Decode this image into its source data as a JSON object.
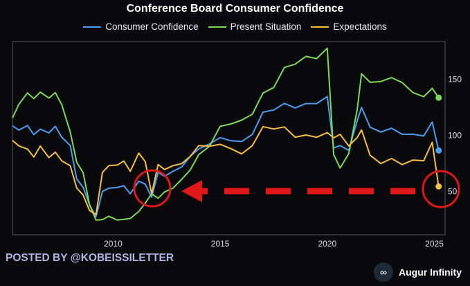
{
  "chart_data": {
    "type": "line",
    "title": "Conference Board Consumer Confidence",
    "xlabel": "",
    "ylabel": "",
    "xlim": [
      2005.3,
      2025.5
    ],
    "ylim": [
      11,
      183
    ],
    "xticks": [
      2010,
      2015,
      2020,
      2025
    ],
    "yticks": [
      50,
      100,
      150
    ],
    "legend_position": "top",
    "series": [
      {
        "name": "Consumer Confidence",
        "color": "#4a9ff5",
        "x": [
          2005.3,
          2005.6,
          2006.0,
          2006.3,
          2006.6,
          2007.0,
          2007.3,
          2007.6,
          2008.0,
          2008.3,
          2008.6,
          2008.9,
          2009.2,
          2009.5,
          2009.8,
          2010.2,
          2010.5,
          2010.8,
          2011.2,
          2011.5,
          2011.8,
          2012.1,
          2012.4,
          2012.8,
          2013.2,
          2013.6,
          2014.0,
          2014.5,
          2015.0,
          2015.5,
          2016.0,
          2016.5,
          2017.0,
          2017.5,
          2018.0,
          2018.5,
          2019.0,
          2019.5,
          2020.0,
          2020.3,
          2020.6,
          2021.0,
          2021.4,
          2021.6,
          2022.0,
          2022.5,
          2023.0,
          2023.5,
          2024.0,
          2024.5,
          2024.9,
          2025.2
        ],
        "y": [
          108,
          102,
          106,
          100,
          107,
          104,
          108,
          96,
          88,
          60,
          55,
          40,
          28,
          48,
          50,
          52,
          56,
          50,
          60,
          55,
          42,
          65,
          64,
          70,
          73,
          80,
          85,
          90,
          98,
          97,
          96,
          100,
          118,
          120,
          128,
          126,
          130,
          128,
          132,
          86,
          90,
          88,
          115,
          125,
          105,
          100,
          105,
          102,
          103,
          100,
          110,
          86
        ]
      },
      {
        "name": "Present Situation",
        "color": "#7ed957",
        "x": [
          2005.3,
          2005.6,
          2006.0,
          2006.3,
          2006.6,
          2007.0,
          2007.3,
          2007.6,
          2008.0,
          2008.3,
          2008.6,
          2008.9,
          2009.2,
          2009.5,
          2009.8,
          2010.2,
          2010.5,
          2010.8,
          2011.2,
          2011.5,
          2011.8,
          2012.1,
          2012.4,
          2012.8,
          2013.2,
          2013.6,
          2014.0,
          2014.5,
          2015.0,
          2015.5,
          2016.0,
          2016.5,
          2017.0,
          2017.5,
          2018.0,
          2018.5,
          2019.0,
          2019.5,
          2020.0,
          2020.3,
          2020.6,
          2021.0,
          2021.4,
          2021.6,
          2022.0,
          2022.5,
          2023.0,
          2023.5,
          2024.0,
          2024.5,
          2024.9,
          2025.2
        ],
        "y": [
          115,
          125,
          135,
          132,
          140,
          135,
          138,
          125,
          100,
          75,
          68,
          40,
          25,
          23,
          25,
          23,
          26,
          28,
          33,
          38,
          45,
          42,
          50,
          55,
          62,
          68,
          80,
          88,
          108,
          112,
          115,
          118,
          135,
          140,
          160,
          165,
          172,
          168,
          175,
          80,
          70,
          85,
          125,
          155,
          145,
          145,
          150,
          148,
          140,
          135,
          140,
          133
        ]
      },
      {
        "name": "Expectations",
        "color": "#f5bf42",
        "x": [
          2005.3,
          2005.6,
          2006.0,
          2006.3,
          2006.6,
          2007.0,
          2007.3,
          2007.6,
          2008.0,
          2008.3,
          2008.6,
          2008.9,
          2009.2,
          2009.5,
          2009.8,
          2010.2,
          2010.5,
          2010.8,
          2011.2,
          2011.5,
          2011.8,
          2012.1,
          2012.4,
          2012.8,
          2013.2,
          2013.6,
          2014.0,
          2014.5,
          2015.0,
          2015.5,
          2016.0,
          2016.5,
          2017.0,
          2017.5,
          2018.0,
          2018.5,
          2019.0,
          2019.5,
          2020.0,
          2020.3,
          2020.6,
          2021.0,
          2021.4,
          2021.6,
          2022.0,
          2022.5,
          2023.0,
          2023.5,
          2024.0,
          2024.5,
          2024.9,
          2025.2
        ],
        "y": [
          95,
          88,
          85,
          80,
          92,
          82,
          85,
          75,
          70,
          52,
          48,
          35,
          30,
          65,
          70,
          72,
          78,
          70,
          85,
          75,
          45,
          72,
          70,
          75,
          76,
          80,
          88,
          88,
          92,
          90,
          85,
          90,
          105,
          103,
          107,
          100,
          102,
          98,
          100,
          95,
          100,
          92,
          100,
          105,
          80,
          72,
          78,
          75,
          80,
          78,
          92,
          54
        ]
      }
    ]
  },
  "legend": [
    "Consumer Confidence",
    "Present Situation",
    "Expectations"
  ],
  "footer": {
    "posted_by": "POSTED BY @KOBEISSILETTER",
    "brand": "Augur Infinity",
    "brand_logo": "∞"
  },
  "colors": {
    "background": "#0a0a0c",
    "annotation": "#e01818",
    "frame": "#555555"
  }
}
